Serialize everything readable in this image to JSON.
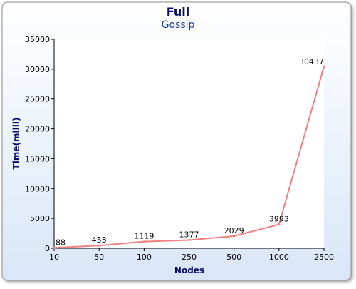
{
  "chart_data": {
    "type": "line",
    "title": "Full",
    "subtitle": "Gossip",
    "xlabel": "Nodes",
    "ylabel": "Time(milli)",
    "categories": [
      "10",
      "50",
      "100",
      "250",
      "500",
      "1000",
      "2500"
    ],
    "series": [
      {
        "values": [
          88,
          453,
          1119,
          1377,
          2029,
          3993,
          30437
        ]
      }
    ],
    "ylim": [
      0,
      35000
    ],
    "yticks": [
      0,
      5000,
      10000,
      15000,
      20000,
      25000,
      30000,
      35000
    ],
    "grid": false,
    "legend": "none"
  },
  "colors": {
    "title": "#0b0b6e",
    "subtitle": "#1f3f9e",
    "axis_title": "#0b0b6e",
    "line": "#f08080",
    "frame_border": "#8e8e8e",
    "background_top": "#ffffff",
    "background_bottom": "#d9e6f7"
  }
}
